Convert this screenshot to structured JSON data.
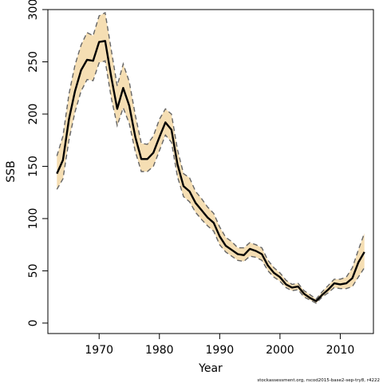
{
  "chart_data": {
    "type": "line",
    "xlabel": "Year",
    "ylabel": "SSB",
    "xlim": [
      1961.5,
      2015.5
    ],
    "ylim": [
      -10,
      300
    ],
    "x_ticks": [
      1970,
      1980,
      1990,
      2000,
      2010
    ],
    "y_ticks": [
      0,
      50,
      100,
      150,
      200,
      250,
      300
    ],
    "grid": false,
    "legend": "none",
    "footer": "stockassessment.org, rscod2015-base2-sep-try8, r4222",
    "colors": {
      "ci_band": "#f5deb3",
      "ssb_line": "#000000",
      "ci_dashed": "#666666"
    },
    "years": [
      1963,
      1964,
      1965,
      1966,
      1967,
      1968,
      1969,
      1970,
      1971,
      1972,
      1973,
      1974,
      1975,
      1976,
      1977,
      1978,
      1979,
      1980,
      1981,
      1982,
      1983,
      1984,
      1985,
      1986,
      1987,
      1988,
      1989,
      1990,
      1991,
      1992,
      1993,
      1994,
      1995,
      1996,
      1997,
      1998,
      1999,
      2000,
      2001,
      2002,
      2003,
      2004,
      2005,
      2006,
      2007,
      2008,
      2009,
      2010,
      2011,
      2012,
      2013,
      2014
    ],
    "series": [
      {
        "name": "SSB",
        "values": [
          143,
          156,
          195,
          222,
          242,
          252,
          251,
          269,
          270,
          236,
          205,
          225,
          208,
          178,
          157,
          157,
          163,
          178,
          192,
          185,
          152,
          131,
          126,
          115,
          108,
          101,
          96,
          83,
          74,
          70,
          66,
          65,
          71,
          69,
          66,
          55,
          48,
          44,
          37,
          34,
          35,
          28,
          24,
          21,
          27,
          32,
          38,
          37,
          38,
          43,
          58,
          68
        ]
      },
      {
        "name": "Upper CI",
        "values": [
          160,
          179,
          219,
          247,
          266,
          278,
          275,
          294,
          297,
          262,
          227,
          248,
          231,
          199,
          172,
          171,
          179,
          195,
          205,
          200,
          166,
          143,
          139,
          126,
          119,
          111,
          105,
          92,
          82,
          78,
          72,
          72,
          77,
          75,
          72,
          60,
          53,
          48,
          41,
          37,
          38,
          31,
          27,
          23,
          30,
          36,
          42,
          42,
          44,
          53,
          70,
          86
        ]
      },
      {
        "name": "Lower CI",
        "values": [
          128,
          138,
          175,
          202,
          222,
          233,
          232,
          249,
          251,
          216,
          189,
          206,
          191,
          164,
          145,
          145,
          150,
          165,
          180,
          173,
          140,
          121,
          116,
          106,
          99,
          93,
          88,
          75,
          68,
          64,
          60,
          59,
          64,
          63,
          60,
          50,
          44,
          40,
          34,
          31,
          32,
          25,
          22,
          19,
          25,
          29,
          34,
          33,
          33,
          35,
          44,
          53
        ]
      }
    ]
  }
}
